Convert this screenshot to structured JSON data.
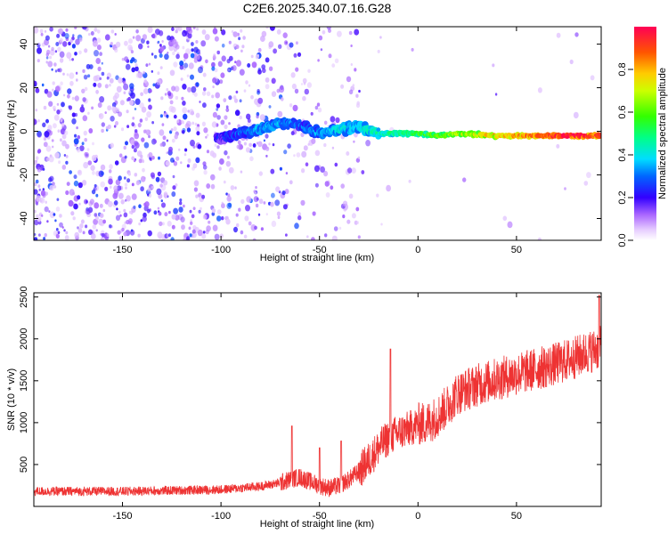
{
  "title": "C2E6.2025.340.07.16.G28",
  "colors": {
    "snr_line": "#ee3333",
    "axis": "#000000"
  },
  "chart_data": [
    {
      "type": "scatter",
      "name": "spectrogram",
      "xlabel": "Height of straight line (km)",
      "ylabel": "Frequency (Hz)",
      "xlim": [
        -195,
        93
      ],
      "ylim": [
        -50,
        48
      ],
      "xticks": [
        -150,
        -100,
        -50,
        0,
        50
      ],
      "yticks": [
        -40,
        -20,
        0,
        20,
        40
      ],
      "colorbar": {
        "label": "Normalized spectral amplitude",
        "range": [
          0,
          1
        ],
        "ticks": [
          0.0,
          0.2,
          0.4,
          0.6,
          0.8
        ],
        "tick_labels": [
          "0.0",
          "0.2",
          "0.4",
          "0.6",
          "0.8"
        ]
      },
      "ridge": {
        "description_free_values": true,
        "x": [
          -100,
          -90,
          -80,
          -70,
          -60,
          -50,
          -40,
          -30,
          -20,
          -10,
          0,
          10,
          20,
          40,
          60,
          80,
          93
        ],
        "freq": [
          -3,
          -1,
          1,
          4,
          3,
          -1,
          1,
          2,
          -1,
          -1,
          -1,
          -2,
          -1,
          -2,
          -2,
          -2,
          -2
        ],
        "amplitude": [
          0.2,
          0.25,
          0.3,
          0.3,
          0.25,
          0.3,
          0.35,
          0.35,
          0.4,
          0.45,
          0.5,
          0.55,
          0.6,
          0.7,
          0.8,
          0.9,
          0.85
        ]
      }
    },
    {
      "type": "line",
      "name": "snr",
      "xlabel": "Height of straight line (km)",
      "ylabel": "SNR (10 * v/v)",
      "xlim": [
        -195,
        93
      ],
      "ylim": [
        0,
        2550
      ],
      "xticks": [
        -150,
        -100,
        -50,
        0,
        50
      ],
      "yticks": [
        500,
        1000,
        1500,
        2000,
        2500
      ],
      "trend": {
        "x": [
          -195,
          -150,
          -100,
          -80,
          -70,
          -65,
          -60,
          -55,
          -50,
          -45,
          -40,
          -35,
          -30,
          -25,
          -20,
          -15,
          -10,
          -5,
          0,
          5,
          10,
          15,
          20,
          30,
          40,
          50,
          60,
          70,
          80,
          93
        ],
        "y": [
          180,
          180,
          200,
          240,
          280,
          320,
          350,
          300,
          250,
          220,
          250,
          320,
          420,
          550,
          700,
          820,
          880,
          920,
          980,
          1000,
          1080,
          1200,
          1350,
          1450,
          1520,
          1580,
          1640,
          1700,
          1780,
          1900
        ]
      },
      "peaks": [
        {
          "x": -64,
          "y": 960
        },
        {
          "x": -50,
          "y": 700
        },
        {
          "x": -39,
          "y": 780
        },
        {
          "x": -14,
          "y": 1880
        },
        {
          "x": 92,
          "y": 2520
        }
      ]
    }
  ]
}
